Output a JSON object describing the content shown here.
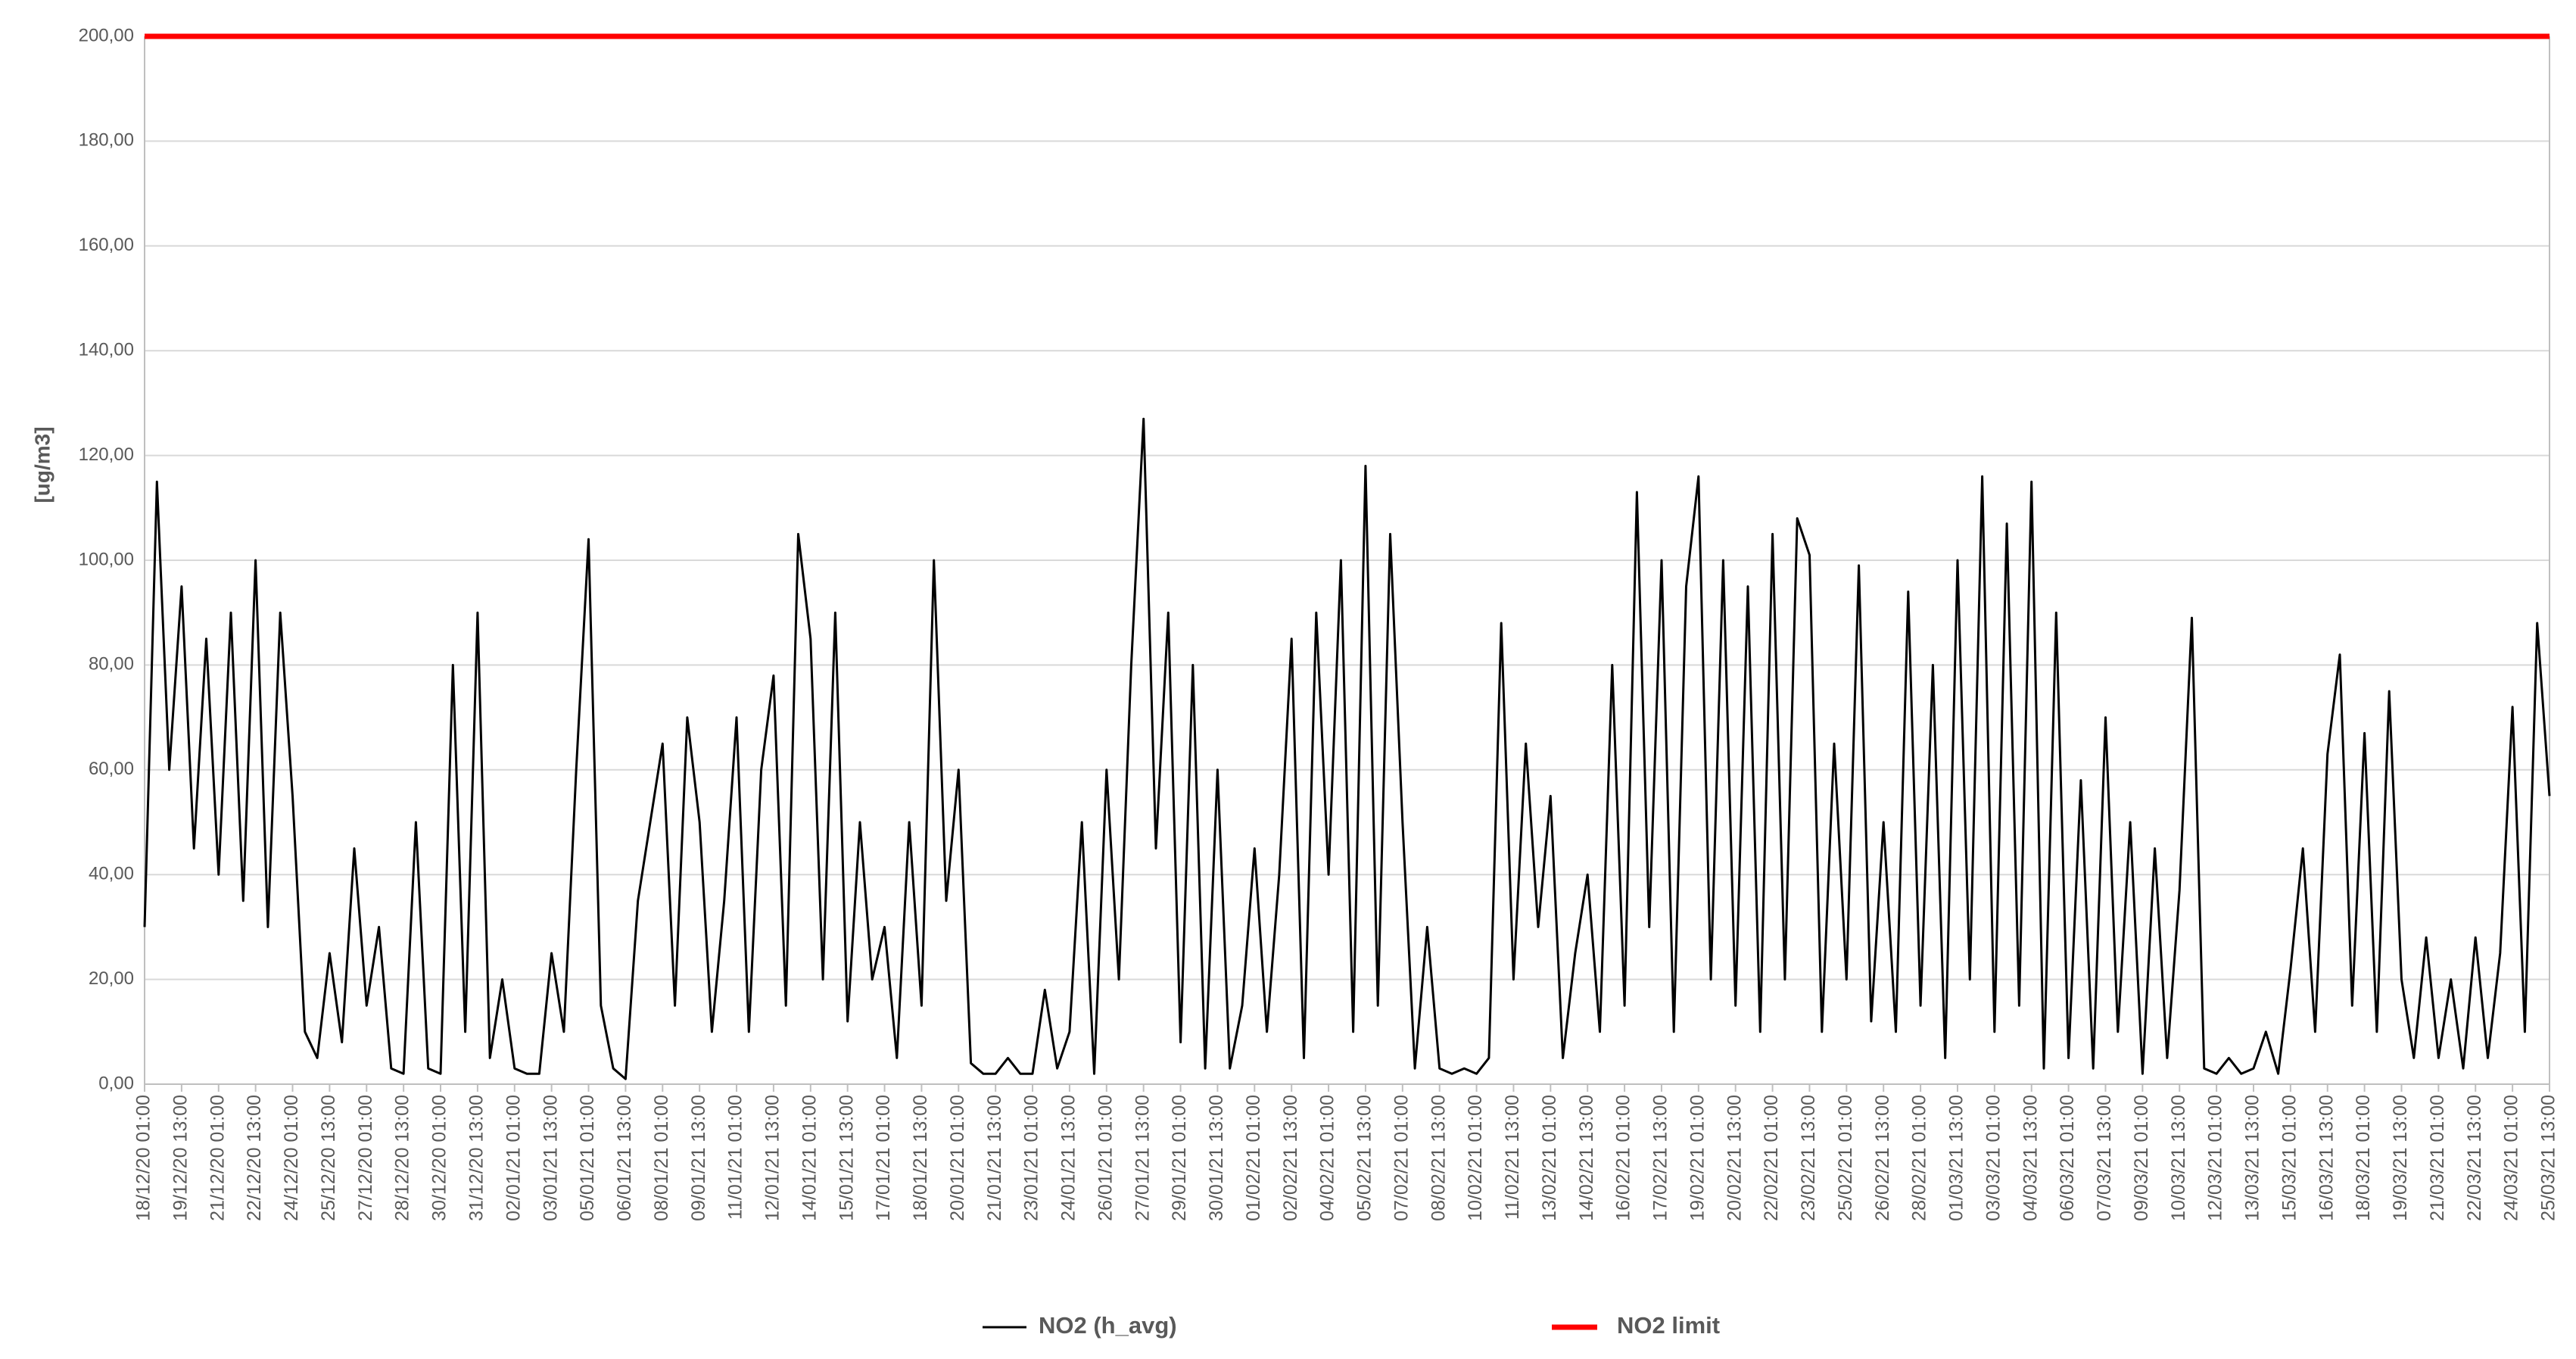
{
  "chart_data": {
    "type": "line",
    "ylabel": "[ug/m3]",
    "ylim": [
      0,
      200
    ],
    "yticks": [
      {
        "value": 0,
        "label": "0,00"
      },
      {
        "value": 20,
        "label": "20,00"
      },
      {
        "value": 40,
        "label": "40,00"
      },
      {
        "value": 60,
        "label": "60,00"
      },
      {
        "value": 80,
        "label": "80,00"
      },
      {
        "value": 100,
        "label": "100,00"
      },
      {
        "value": 120,
        "label": "120,00"
      },
      {
        "value": 140,
        "label": "140,00"
      },
      {
        "value": 160,
        "label": "160,00"
      },
      {
        "value": 180,
        "label": "180,00"
      },
      {
        "value": 200,
        "label": "200,00"
      }
    ],
    "grid": true,
    "categories": [
      "18/12/20 01:00",
      null,
      null,
      "19/12/20 13:00",
      null,
      null,
      "21/12/20 01:00",
      null,
      null,
      "22/12/20 13:00",
      null,
      null,
      "24/12/20 01:00",
      null,
      null,
      "25/12/20 13:00",
      null,
      null,
      "27/12/20 01:00",
      null,
      null,
      "28/12/20 13:00",
      null,
      null,
      "30/12/20 01:00",
      null,
      null,
      "31/12/20 13:00",
      null,
      null,
      "02/01/21 01:00",
      null,
      null,
      "03/01/21 13:00",
      null,
      null,
      "05/01/21 01:00",
      null,
      null,
      "06/01/21 13:00",
      null,
      null,
      "08/01/21 01:00",
      null,
      null,
      "09/01/21 13:00",
      null,
      null,
      "11/01/21 01:00",
      null,
      null,
      "12/01/21 13:00",
      null,
      null,
      "14/01/21 01:00",
      null,
      null,
      "15/01/21 13:00",
      null,
      null,
      "17/01/21 01:00",
      null,
      null,
      "18/01/21 13:00",
      null,
      null,
      "20/01/21 01:00",
      null,
      null,
      "21/01/21 13:00",
      null,
      null,
      "23/01/21 01:00",
      null,
      null,
      "24/01/21 13:00",
      null,
      null,
      "26/01/21 01:00",
      null,
      null,
      "27/01/21 13:00",
      null,
      null,
      "29/01/21 01:00",
      null,
      null,
      "30/01/21 13:00",
      null,
      null,
      "01/02/21 01:00",
      null,
      null,
      "02/02/21 13:00",
      null,
      null,
      "04/02/21 01:00",
      null,
      null,
      "05/02/21 13:00",
      null,
      null,
      "07/02/21 01:00",
      null,
      null,
      "08/02/21 13:00",
      null,
      null,
      "10/02/21 01:00",
      null,
      null,
      "11/02/21 13:00",
      null,
      null,
      "13/02/21 01:00",
      null,
      null,
      "14/02/21 13:00",
      null,
      null,
      "16/02/21 01:00",
      null,
      null,
      "17/02/21 13:00",
      null,
      null,
      "19/02/21 01:00",
      null,
      null,
      "20/02/21 13:00",
      null,
      null,
      "22/02/21 01:00",
      null,
      null,
      "23/02/21 13:00",
      null,
      null,
      "25/02/21 01:00",
      null,
      null,
      "26/02/21 13:00",
      null,
      null,
      "28/02/21 01:00",
      null,
      null,
      "01/03/21 13:00",
      null,
      null,
      "03/03/21 01:00",
      null,
      null,
      "04/03/21 13:00",
      null,
      null,
      "06/03/21 01:00",
      null,
      null,
      "07/03/21 13:00",
      null,
      null,
      "09/03/21 01:00",
      null,
      null,
      "10/03/21 13:00",
      null,
      null,
      "12/03/21 01:00",
      null,
      null,
      "13/03/21 13:00",
      null,
      null,
      "15/03/21 01:00",
      null,
      null,
      "16/03/21 13:00",
      null,
      null,
      "18/03/21 01:00",
      null,
      null,
      "19/03/21 13:00",
      null,
      null,
      "21/03/21 01:00",
      null,
      null,
      "22/03/21 13:00",
      null,
      null,
      "24/03/21 01:00",
      null,
      null,
      "25/03/21 13:00"
    ],
    "series": [
      {
        "name": "NO2 (h_avg)",
        "color": "#000000",
        "values": [
          30,
          115,
          60,
          95,
          45,
          85,
          40,
          90,
          35,
          100,
          30,
          90,
          55,
          10,
          5,
          25,
          8,
          45,
          15,
          30,
          3,
          2,
          50,
          3,
          2,
          80,
          10,
          90,
          5,
          20,
          3,
          2,
          2,
          25,
          10,
          60,
          104,
          15,
          3,
          1,
          35,
          50,
          65,
          15,
          70,
          50,
          10,
          35,
          70,
          10,
          60,
          78,
          15,
          105,
          85,
          20,
          90,
          12,
          50,
          20,
          30,
          5,
          50,
          15,
          100,
          35,
          60,
          4,
          2,
          2,
          5,
          2,
          2,
          18,
          3,
          10,
          50,
          2,
          60,
          20,
          80,
          127,
          45,
          90,
          8,
          80,
          3,
          60,
          3,
          15,
          45,
          10,
          40,
          85,
          5,
          90,
          40,
          100,
          10,
          118,
          15,
          105,
          50,
          3,
          30,
          3,
          2,
          3,
          2,
          5,
          88,
          20,
          65,
          30,
          55,
          5,
          25,
          40,
          10,
          80,
          15,
          113,
          30,
          100,
          10,
          95,
          116,
          20,
          100,
          15,
          95,
          10,
          105,
          20,
          108,
          101,
          10,
          65,
          20,
          99,
          12,
          50,
          10,
          94,
          15,
          80,
          5,
          100,
          20,
          116,
          10,
          107,
          15,
          115,
          3,
          90,
          5,
          58,
          3,
          70,
          10,
          50,
          2,
          45,
          5,
          37,
          89,
          3,
          2,
          5,
          2,
          3,
          10,
          2,
          22,
          45,
          10,
          63,
          82,
          15,
          67,
          10,
          75,
          20,
          5,
          28,
          5,
          20,
          3,
          28,
          5,
          25,
          72,
          10,
          88,
          55
        ]
      }
    ],
    "limit": {
      "name": "NO2 limit",
      "color": "#ff0000",
      "value": 200
    }
  }
}
